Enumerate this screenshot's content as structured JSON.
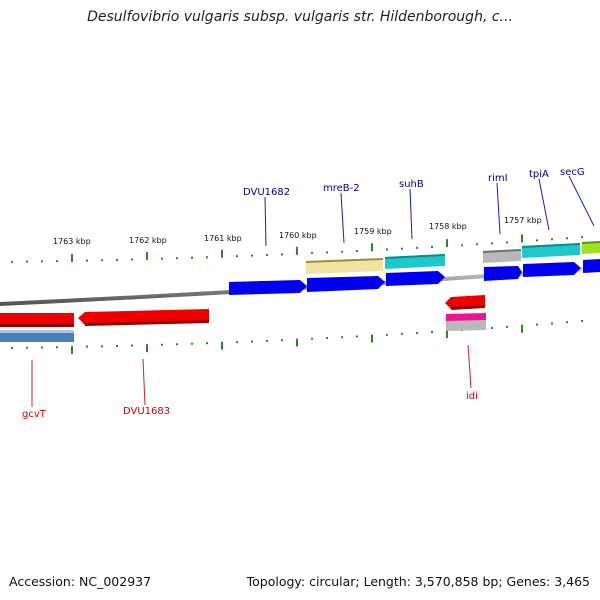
{
  "title": "Desulfovibrio vulgaris subsp. vulgaris str. Hildenborough, c...",
  "footer": {
    "accession": "Accession: NC_002937",
    "topology": "Topology: circular; Length: 3,570,858 bp; Genes: 3,465"
  },
  "scale_labels": [
    "1763 kbp",
    "1762 kbp",
    "1761 kbp",
    "1760 kbp",
    "1759 kbp",
    "1758 kbp",
    "1757 kbp"
  ],
  "gene_labels_top": [
    "DVU1682",
    "mreB-2",
    "suhB",
    "rimI",
    "tpiA",
    "secG"
  ],
  "gene_labels_bottom": [
    "gcvT",
    "DVU1683",
    "idi"
  ],
  "colors": {
    "top_label": "#00008b",
    "bottom_label": "#cc0000",
    "tick": "#228b22",
    "backbone": "#777777",
    "gene_blue": "#0000ee",
    "gene_red": "#ee0000",
    "gene_khaki": "#efe4a0",
    "gene_cyan": "#1ec8c8",
    "gene_gray": "#b8b8b8",
    "gene_green": "#a0e020",
    "gene_steelblue": "#4682b4",
    "gene_pink": "#ee1493"
  }
}
